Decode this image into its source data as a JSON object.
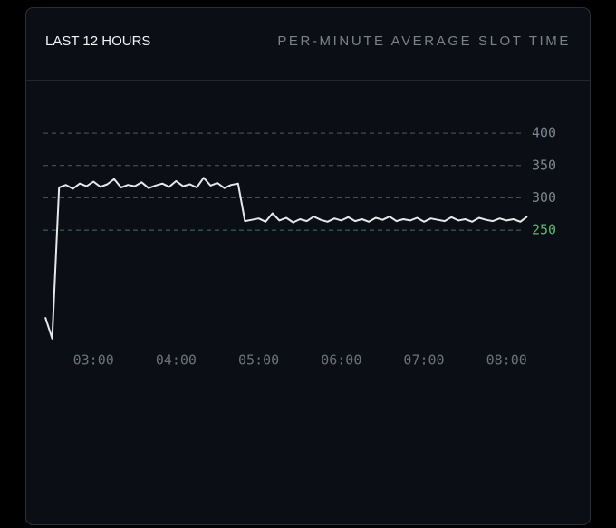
{
  "chart_data": {
    "type": "line",
    "title": "LAST 12 HOURS",
    "subtitle": "PER-MINUTE AVERAGE SLOT TIME",
    "x": [
      "02:25",
      "02:30",
      "02:35",
      "02:40",
      "02:45",
      "02:50",
      "02:55",
      "03:00",
      "03:05",
      "03:10",
      "03:15",
      "03:20",
      "03:25",
      "03:30",
      "03:35",
      "03:40",
      "03:45",
      "03:50",
      "03:55",
      "04:00",
      "04:05",
      "04:10",
      "04:15",
      "04:20",
      "04:25",
      "04:30",
      "04:35",
      "04:40",
      "04:45",
      "04:50",
      "04:55",
      "05:00",
      "05:05",
      "05:10",
      "05:15",
      "05:20",
      "05:25",
      "05:30",
      "05:35",
      "05:40",
      "05:45",
      "05:50",
      "05:55",
      "06:00",
      "06:05",
      "06:10",
      "06:15",
      "06:20",
      "06:25",
      "06:30",
      "06:35",
      "06:40",
      "06:45",
      "06:50",
      "06:55",
      "07:00",
      "07:05",
      "07:10",
      "07:15",
      "07:20",
      "07:25",
      "07:30",
      "07:35",
      "07:40",
      "07:45",
      "07:50",
      "07:55",
      "08:00",
      "08:05",
      "08:10",
      "08:15"
    ],
    "series": [
      {
        "color": "#e6e8eb",
        "values": [
          115,
          82,
          316,
          320,
          314,
          322,
          318,
          325,
          317,
          321,
          329,
          316,
          320,
          318,
          324,
          315,
          319,
          322,
          317,
          326,
          318,
          321,
          316,
          331,
          319,
          323,
          315,
          320,
          322,
          264,
          266,
          268,
          263,
          276,
          265,
          269,
          262,
          267,
          264,
          271,
          266,
          263,
          268,
          265,
          270,
          264,
          267,
          263,
          269,
          266,
          271,
          264,
          267,
          265,
          269,
          263,
          268,
          266,
          264,
          270,
          265,
          267,
          263,
          269,
          266,
          264,
          268,
          265,
          267,
          263,
          271
        ]
      }
    ],
    "xlim": [
      "02:25",
      "08:15"
    ],
    "xticks": [
      "03:00",
      "04:00",
      "05:00",
      "06:00",
      "07:00",
      "08:00"
    ],
    "ylim": [
      70,
      410
    ],
    "yticks": [
      250,
      300,
      350,
      400
    ],
    "ytick_colors": [
      "#4f9e63",
      "#6b727c",
      "#6b727c",
      "#6b727c"
    ],
    "grid": true
  }
}
